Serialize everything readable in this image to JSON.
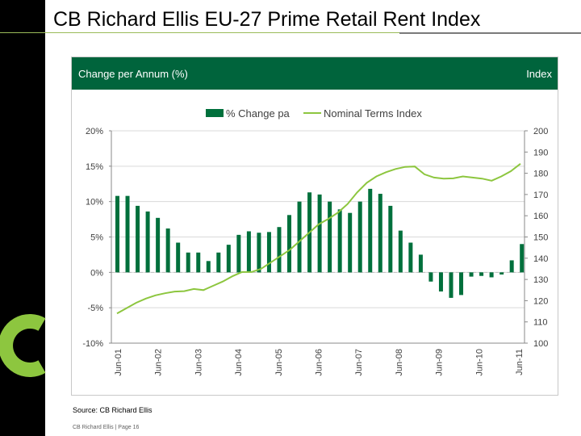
{
  "page": {
    "title": "CB Richard Ellis EU-27 Prime Retail Rent Index"
  },
  "panel": {
    "left_label": "Change per Annum (%)",
    "right_label": "Index"
  },
  "source": "Source: CB Richard Ellis",
  "footer": "CB Richard Ellis | Page 16",
  "colors": {
    "bar": "#00703c",
    "line": "#8dc63f",
    "header": "#00643c",
    "grid": "#d9d9d9",
    "logo": "#8dc63f"
  },
  "chart_data": {
    "type": "bar",
    "legend": [
      "% Change pa",
      "Nominal Terms Index"
    ],
    "legend_placement": "top",
    "grid": true,
    "x_tick_labels": [
      "Jun-01",
      "Jun-02",
      "Jun-03",
      "Jun-04",
      "Jun-05",
      "Jun-06",
      "Jun-07",
      "Jun-08",
      "Jun-09",
      "Jun-10",
      "Jun-11"
    ],
    "y_left": {
      "min": -10,
      "max": 20,
      "ticks": [
        "20%",
        "15%",
        "10%",
        "5%",
        "0%",
        "-5%",
        "-10%"
      ]
    },
    "y_right": {
      "min": 100,
      "max": 200,
      "ticks": [
        "200",
        "190",
        "180",
        "170",
        "160",
        "150",
        "140",
        "130",
        "120",
        "110",
        "100"
      ]
    },
    "series": [
      {
        "name": "% Change pa",
        "type": "bar",
        "axis": "left",
        "values": [
          10.8,
          10.8,
          9.4,
          8.6,
          7.7,
          6.2,
          4.2,
          2.8,
          2.8,
          1.6,
          2.8,
          3.9,
          5.3,
          5.8,
          5.6,
          5.7,
          6.4,
          8.1,
          10.0,
          11.3,
          11.0,
          10.0,
          8.9,
          8.4,
          10.0,
          11.8,
          11.1,
          9.4,
          5.9,
          4.2,
          2.5,
          -1.3,
          -2.7,
          -3.6,
          -3.2,
          -0.6,
          -0.5,
          -0.7,
          -0.3,
          1.7,
          4.0
        ]
      },
      {
        "name": "Nominal Terms Index",
        "type": "line",
        "axis": "right",
        "values": [
          114,
          116.5,
          119,
          121,
          122.5,
          123.5,
          124.3,
          124.5,
          125.5,
          125,
          127,
          129,
          131.5,
          133.5,
          133.5,
          135,
          138,
          141,
          144,
          148,
          152,
          156,
          158.5,
          161.5,
          165.5,
          171,
          175.5,
          178.5,
          180.5,
          182,
          183,
          183.2,
          179.5,
          178,
          177.5,
          177.6,
          178.5,
          178,
          177.5,
          176.5,
          178.5,
          181,
          184.5
        ]
      }
    ]
  }
}
